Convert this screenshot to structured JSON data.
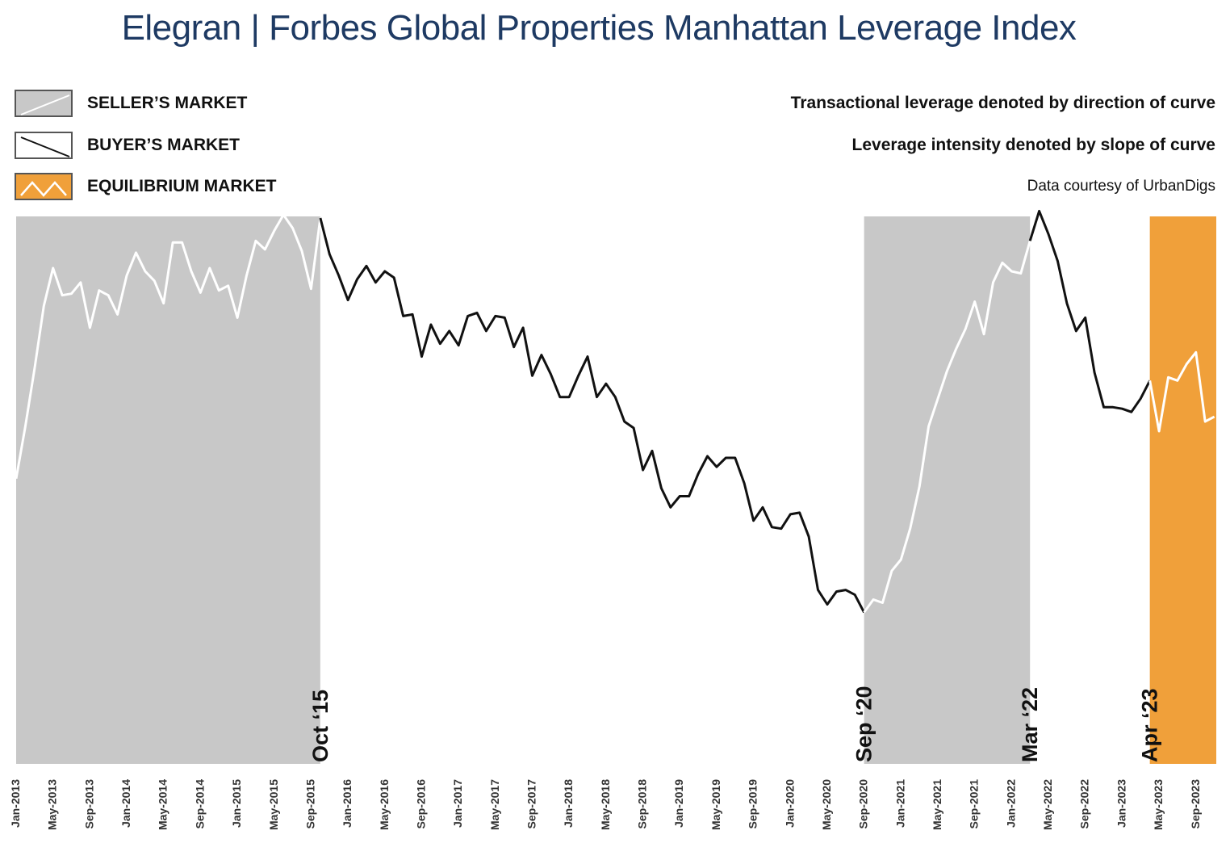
{
  "title": "Elegran | Forbes Global Properties Manhattan Leverage Index",
  "legend": [
    {
      "label": "SELLER’S MARKET",
      "fill": "#c8c8c8",
      "line": "#ffffff"
    },
    {
      "label": "BUYER’S MARKET",
      "fill": "#ffffff",
      "line": "#111111"
    },
    {
      "label": "EQUILIBRIUM MARKET",
      "fill": "#f0a03a",
      "line": "#ffffff"
    }
  ],
  "notes": {
    "direction": "Transactional leverage denoted by direction of curve",
    "intensity": "Leverage intensity denoted by slope of curve",
    "source": "Data courtesy of UrbanDigs"
  },
  "chart_data": {
    "type": "line",
    "start": "Jan-2013",
    "ylim": [
      0,
      100
    ],
    "colors": {
      "seller": "#c8c8c8",
      "equilibrium": "#f0a03a",
      "buyer_line": "#111111",
      "shaded_line": "#ffffff"
    },
    "regions": [
      {
        "type": "seller",
        "from": 0,
        "to": 33,
        "label": ""
      },
      {
        "type": "buyer",
        "from": 33,
        "to": 92,
        "label": "Oct ‘15"
      },
      {
        "type": "seller",
        "from": 92,
        "to": 110,
        "label": "Sep ‘20"
      },
      {
        "type": "buyer",
        "from": 110,
        "to": 123,
        "label": "Mar ‘22"
      },
      {
        "type": "equilibrium",
        "from": 123,
        "to": 130,
        "label": "Apr ‘23"
      }
    ],
    "xticks": [
      {
        "i": 0,
        "label": "Jan-2013"
      },
      {
        "i": 4,
        "label": "May-2013"
      },
      {
        "i": 8,
        "label": "Sep-2013"
      },
      {
        "i": 12,
        "label": "Jan-2014"
      },
      {
        "i": 16,
        "label": "May-2014"
      },
      {
        "i": 20,
        "label": "Sep-2014"
      },
      {
        "i": 24,
        "label": "Jan-2015"
      },
      {
        "i": 28,
        "label": "May-2015"
      },
      {
        "i": 32,
        "label": "Sep-2015"
      },
      {
        "i": 36,
        "label": "Jan-2016"
      },
      {
        "i": 40,
        "label": "May-2016"
      },
      {
        "i": 44,
        "label": "Sep-2016"
      },
      {
        "i": 48,
        "label": "Jan-2017"
      },
      {
        "i": 52,
        "label": "May-2017"
      },
      {
        "i": 56,
        "label": "Sep-2017"
      },
      {
        "i": 60,
        "label": "Jan-2018"
      },
      {
        "i": 64,
        "label": "May-2018"
      },
      {
        "i": 68,
        "label": "Sep-2018"
      },
      {
        "i": 72,
        "label": "Jan-2019"
      },
      {
        "i": 76,
        "label": "May-2019"
      },
      {
        "i": 80,
        "label": "Sep-2019"
      },
      {
        "i": 84,
        "label": "Jan-2020"
      },
      {
        "i": 88,
        "label": "May-2020"
      },
      {
        "i": 92,
        "label": "Sep-2020"
      },
      {
        "i": 96,
        "label": "Jan-2021"
      },
      {
        "i": 100,
        "label": "May-2021"
      },
      {
        "i": 104,
        "label": "Sep-2021"
      },
      {
        "i": 108,
        "label": "Jan-2022"
      },
      {
        "i": 112,
        "label": "May-2022"
      },
      {
        "i": 116,
        "label": "Sep-2022"
      },
      {
        "i": 120,
        "label": "Jan-2023"
      },
      {
        "i": 124,
        "label": "May-2023"
      },
      {
        "i": 128,
        "label": "Sep-2023"
      }
    ],
    "values": [
      53.5,
      63.3,
      74.1,
      85.9,
      93.0,
      87.9,
      88.2,
      90.3,
      81.8,
      88.8,
      87.9,
      84.3,
      91.6,
      95.9,
      92.4,
      90.6,
      86.4,
      97.8,
      97.8,
      92.4,
      88.4,
      93.0,
      88.8,
      89.7,
      83.7,
      91.6,
      98.1,
      96.5,
      100.0,
      103.0,
      100.5,
      96.2,
      89.1,
      102.4,
      95.6,
      91.6,
      87.0,
      90.9,
      93.4,
      90.3,
      92.4,
      91.2,
      84.0,
      84.3,
      76.4,
      82.4,
      78.8,
      81.2,
      78.5,
      84.0,
      84.6,
      81.2,
      84.0,
      83.7,
      78.2,
      81.8,
      72.8,
      76.7,
      73.1,
      68.8,
      68.8,
      72.8,
      76.4,
      68.8,
      71.3,
      68.8,
      64.2,
      63.0,
      55.1,
      58.7,
      51.7,
      48.1,
      50.2,
      50.2,
      54.4,
      57.7,
      55.7,
      57.4,
      57.4,
      52.6,
      45.6,
      48.1,
      44.4,
      44.1,
      46.8,
      47.1,
      42.6,
      32.6,
      29.9,
      32.3,
      32.6,
      31.7,
      28.4,
      30.8,
      30.2,
      36.2,
      38.3,
      44.1,
      52.0,
      63.3,
      68.5,
      73.7,
      77.9,
      81.6,
      86.7,
      80.6,
      90.3,
      94.0,
      92.4,
      92.0,
      98.1,
      103.7,
      99.4,
      94.3,
      86.4,
      81.2,
      83.7,
      73.4,
      66.9,
      66.9,
      66.6,
      66.0,
      68.5,
      71.9,
      62.4,
      72.5,
      71.9,
      75.0,
      77.2,
      64.2,
      65.1,
      63.6
    ]
  }
}
